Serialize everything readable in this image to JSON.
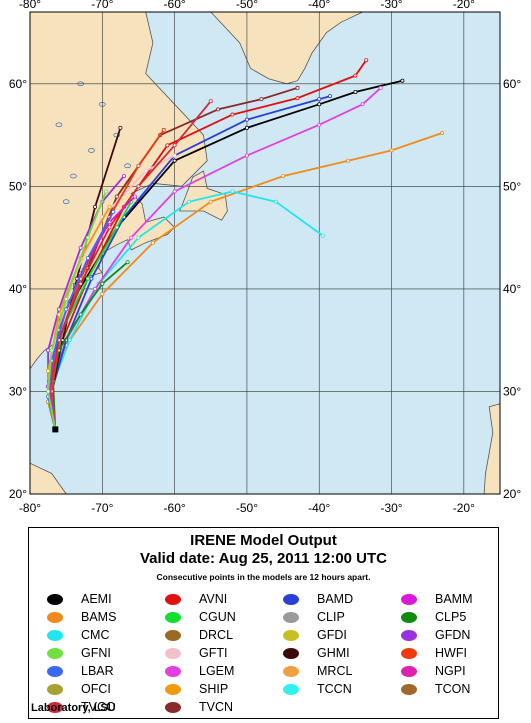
{
  "map": {
    "lon_range": [
      -80,
      -15
    ],
    "lat_range": [
      20,
      67
    ],
    "lon_ticks": [
      -80,
      -70,
      -60,
      -50,
      -40,
      -30,
      -20
    ],
    "lat_ticks": [
      20,
      30,
      40,
      50,
      60
    ],
    "lon_labels": [
      "-80°",
      "-70°",
      "-60°",
      "-50°",
      "-40°",
      "-30°",
      "-20°"
    ],
    "lat_labels": [
      "20°",
      "30°",
      "40°",
      "50°",
      "60°"
    ],
    "ocean_color": "#cfe8f4",
    "land_color": "#f6e3be",
    "grid": true
  },
  "legend": {
    "title": "IRENE Model Output",
    "valid": "Valid date: Aug 25, 2011 12:00 UTC",
    "note": "Consecutive points in the models are 12 hours apart.",
    "credit": "Laboratory, LSU",
    "models": [
      {
        "name": "AEMI",
        "color": "#000000"
      },
      {
        "name": "AVNI",
        "color": "#e01010"
      },
      {
        "name": "BAMD",
        "color": "#2b3fd8"
      },
      {
        "name": "BAMM",
        "color": "#d81ad8"
      },
      {
        "name": "BAMS",
        "color": "#f08a1a"
      },
      {
        "name": "CGUN",
        "color": "#10e030"
      },
      {
        "name": "CLIP",
        "color": "#9a9a9a"
      },
      {
        "name": "CLP5",
        "color": "#108a10"
      },
      {
        "name": "CMC",
        "color": "#20e6ee"
      },
      {
        "name": "DRCL",
        "color": "#9a6a20"
      },
      {
        "name": "GFDI",
        "color": "#c8c020"
      },
      {
        "name": "GFDN",
        "color": "#9a30e0"
      },
      {
        "name": "GFNI",
        "color": "#70e040"
      },
      {
        "name": "GFTI",
        "color": "#f2c0c8"
      },
      {
        "name": "GHMI",
        "color": "#3a0a0a"
      },
      {
        "name": "HWFI",
        "color": "#f03a10"
      },
      {
        "name": "LBAR",
        "color": "#3a6af0"
      },
      {
        "name": "LGEM",
        "color": "#e040e0"
      },
      {
        "name": "MRCL",
        "color": "#f0a040"
      },
      {
        "name": "NGPI",
        "color": "#e020b0"
      },
      {
        "name": "OFCI",
        "color": "#a8a030"
      },
      {
        "name": "SHIP",
        "color": "#f09a10"
      },
      {
        "name": "TCCN",
        "color": "#30f0f0"
      },
      {
        "name": "TCON",
        "color": "#a0682a"
      },
      {
        "name": "TVCC",
        "color": "#d02a3a"
      },
      {
        "name": "TVCN",
        "color": "#8a2a2a"
      }
    ]
  },
  "tracks": [
    {
      "model": "AEMI",
      "color": "#000000",
      "points": [
        [
          -76.5,
          26.3
        ],
        [
          -77.5,
          29
        ],
        [
          -77,
          33
        ],
        [
          -74,
          39
        ],
        [
          -68,
          46
        ],
        [
          -60,
          52.5
        ],
        [
          -50,
          55.7
        ],
        [
          -40,
          58
        ],
        [
          -35,
          59.2
        ],
        [
          -28.5,
          60.3
        ]
      ]
    },
    {
      "model": "BAMS",
      "color": "#f08a1a",
      "points": [
        [
          -76.5,
          26.3
        ],
        [
          -77.5,
          30.5
        ],
        [
          -75,
          34.5
        ],
        [
          -70,
          39.5
        ],
        [
          -63,
          44.5
        ],
        [
          -55,
          48.5
        ],
        [
          -45,
          51
        ],
        [
          -36,
          52.5
        ],
        [
          -30,
          53.5
        ],
        [
          -23,
          55.2
        ]
      ]
    },
    {
      "model": "CMC",
      "color": "#20e6ee",
      "points": [
        [
          -76.5,
          26.3
        ],
        [
          -77,
          30.5
        ],
        [
          -74.5,
          35
        ],
        [
          -70.5,
          40.5
        ],
        [
          -65,
          45
        ],
        [
          -58,
          48.5
        ],
        [
          -52,
          49.5
        ],
        [
          -46,
          48.5
        ],
        [
          -39.5,
          45.2
        ]
      ]
    },
    {
      "model": "LGEM",
      "color": "#e040e0",
      "points": [
        [
          -76.5,
          26.3
        ],
        [
          -77.2,
          30.5
        ],
        [
          -75,
          35
        ],
        [
          -71,
          40
        ],
        [
          -66,
          45
        ],
        [
          -60,
          49.5
        ],
        [
          -50,
          53
        ],
        [
          -40,
          56
        ],
        [
          -34,
          58
        ],
        [
          -31.5,
          59.6
        ]
      ]
    },
    {
      "model": "BAMD",
      "color": "#2b3fd8",
      "points": [
        [
          -76.5,
          26.3
        ],
        [
          -77,
          30
        ],
        [
          -75,
          35
        ],
        [
          -71.5,
          41
        ],
        [
          -67,
          47
        ],
        [
          -60,
          53
        ],
        [
          -50,
          56.5
        ],
        [
          -40,
          58.5
        ],
        [
          -38.5,
          58.8
        ]
      ]
    },
    {
      "model": "AVNI",
      "color": "#e01010",
      "points": [
        [
          -76.5,
          26.3
        ],
        [
          -77.5,
          30
        ],
        [
          -75.5,
          35
        ],
        [
          -72,
          41
        ],
        [
          -67,
          48
        ],
        [
          -61,
          54
        ],
        [
          -52,
          57
        ],
        [
          -43,
          58.6
        ],
        [
          -35,
          60.8
        ],
        [
          -33.5,
          62.3
        ]
      ]
    },
    {
      "model": "TVCN",
      "color": "#8a2a2a",
      "points": [
        [
          -76.5,
          26.3
        ],
        [
          -77.3,
          30.5
        ],
        [
          -75.5,
          36
        ],
        [
          -72,
          42
        ],
        [
          -68,
          49
        ],
        [
          -62,
          55
        ],
        [
          -54,
          57.5
        ],
        [
          -48,
          58.5
        ],
        [
          -43,
          59.6
        ]
      ]
    },
    {
      "model": "GHMI",
      "color": "#3a0a0a",
      "points": [
        [
          -76.5,
          26.3
        ],
        [
          -77,
          30
        ],
        [
          -75.5,
          35
        ],
        [
          -73.5,
          41
        ],
        [
          -71,
          48
        ],
        [
          -67.5,
          55.7
        ]
      ]
    },
    {
      "model": "GFTI",
      "color": "#f2c0c8",
      "points": [
        [
          -76.5,
          26.3
        ],
        [
          -77.5,
          30
        ],
        [
          -76.5,
          35
        ],
        [
          -74,
          41
        ],
        [
          -70,
          47
        ],
        [
          -64,
          51.5
        ],
        [
          -60,
          53
        ]
      ]
    },
    {
      "model": "CGUN",
      "color": "#10e030",
      "points": [
        [
          -76.5,
          26.3
        ],
        [
          -77.2,
          31
        ],
        [
          -75.5,
          36
        ],
        [
          -72,
          41
        ],
        [
          -68,
          46
        ],
        [
          -66,
          48.5
        ]
      ]
    },
    {
      "model": "CLP5",
      "color": "#108a10",
      "points": [
        [
          -76.5,
          26.3
        ],
        [
          -76.8,
          31
        ],
        [
          -76,
          34
        ],
        [
          -73,
          37.5
        ],
        [
          -70,
          40.5
        ],
        [
          -66.5,
          42.6
        ]
      ]
    },
    {
      "model": "HWFI",
      "color": "#f03a10",
      "points": [
        [
          -76.5,
          26.3
        ],
        [
          -77,
          30
        ],
        [
          -76,
          35
        ],
        [
          -73,
          41
        ],
        [
          -69,
          47
        ],
        [
          -65,
          52
        ],
        [
          -61.5,
          55.5
        ]
      ]
    },
    {
      "model": "GFDN",
      "color": "#9a30e0",
      "points": [
        [
          -76.5,
          26.3
        ],
        [
          -77.5,
          30.5
        ],
        [
          -77.5,
          34
        ],
        [
          -76,
          38
        ],
        [
          -73,
          44
        ],
        [
          -70,
          48.5
        ],
        [
          -67,
          51
        ]
      ]
    },
    {
      "model": "SHIP",
      "color": "#f09a10",
      "points": [
        [
          -76.5,
          26.3
        ],
        [
          -77.5,
          29
        ],
        [
          -77.5,
          32
        ],
        [
          -76,
          37.5
        ],
        [
          -73,
          43
        ],
        [
          -69,
          48
        ]
      ]
    },
    {
      "model": "TVCC",
      "color": "#d02a3a",
      "points": [
        [
          -76.5,
          26.3
        ],
        [
          -77.3,
          30
        ],
        [
          -76,
          35
        ],
        [
          -73,
          40.5
        ],
        [
          -69,
          46
        ],
        [
          -65,
          50
        ],
        [
          -60,
          54
        ],
        [
          -55,
          58.3
        ]
      ]
    },
    {
      "model": "BAMM",
      "color": "#d81ad8",
      "points": [
        [
          -76.5,
          26.3
        ],
        [
          -77.3,
          31
        ],
        [
          -76,
          36
        ],
        [
          -73,
          41.5
        ],
        [
          -69,
          46.5
        ],
        [
          -65.5,
          49
        ]
      ]
    },
    {
      "model": "LBAR",
      "color": "#3a6af0",
      "points": [
        [
          -76.5,
          26.3
        ],
        [
          -77.5,
          29.5
        ],
        [
          -77,
          33
        ],
        [
          -75,
          38
        ],
        [
          -72,
          43
        ],
        [
          -68.5,
          47.5
        ]
      ]
    },
    {
      "model": "GFNI",
      "color": "#70e040",
      "points": [
        [
          -76.5,
          26.3
        ],
        [
          -77.5,
          30
        ],
        [
          -77,
          34
        ],
        [
          -75,
          39
        ],
        [
          -72,
          45
        ],
        [
          -69.5,
          49.5
        ]
      ]
    }
  ]
}
